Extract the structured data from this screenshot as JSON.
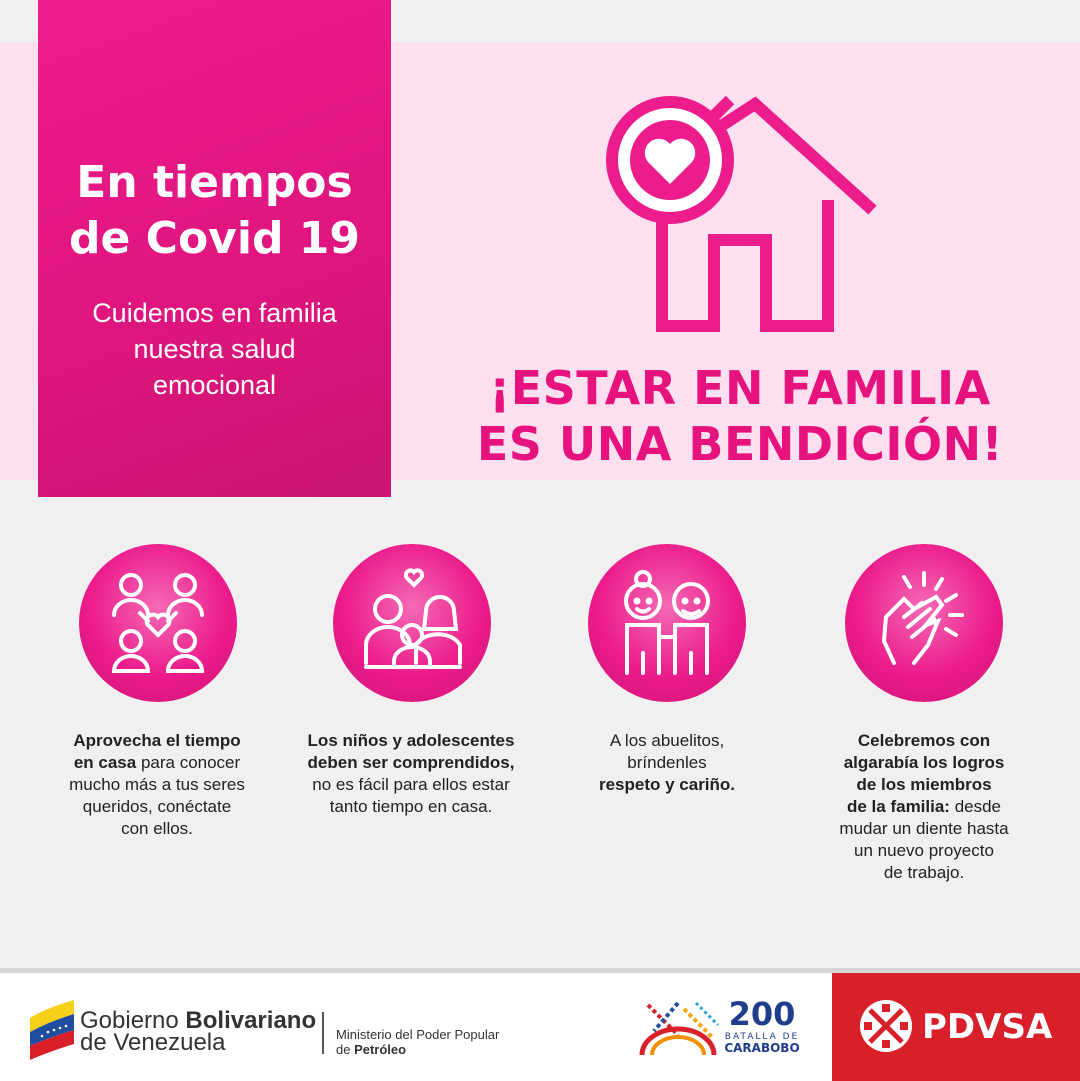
{
  "title_box": {
    "title_line1": "En tiempos",
    "title_line2": "de Covid 19",
    "sub_line1": "Cuidemos en familia",
    "sub_line2": "nuestra salud",
    "sub_line3": "emocional"
  },
  "headline": {
    "line1": "¡ESTAR EN FAMILIA",
    "line2": "ES UNA BENDICIÓN!"
  },
  "tips": [
    {
      "icon": "family-heart-icon",
      "bold1": "Aprovecha el tiempo",
      "bold2": "en casa",
      "text2": " para conocer",
      "text3": "mucho más a tus seres",
      "text4": "queridos, conéctate",
      "text5": "con ellos."
    },
    {
      "icon": "parents-child-icon",
      "bold1": "Los niños y adolescentes",
      "bold2": "deben ser comprendidos,",
      "text3": "no es fácil para ellos estar",
      "text4": "tanto tiempo en casa."
    },
    {
      "icon": "grandparents-icon",
      "text1": "A los abuelitos,",
      "text2": "bríndenles",
      "bold3": "respeto y cariño."
    },
    {
      "icon": "clapping-hands-icon",
      "bold1": "Celebremos con",
      "bold2": "algarabía los logros",
      "bold3": "de los miembros",
      "bold4": "de la familia:",
      "text4": " desde",
      "text5": "mudar un diente hasta",
      "text6": "un nuevo proyecto",
      "text7": "de trabajo."
    }
  ],
  "footer": {
    "gob_line1_a": "Gobierno ",
    "gob_line1_b": "Bolivariano",
    "gob_line2": "de Venezuela",
    "ministerio_line1": "Ministerio del Poder Popular",
    "ministerio_line2_a": "de ",
    "ministerio_line2_b": "Petróleo",
    "bicentenario_number": "200",
    "bicentenario_line1": "BATALLA DE",
    "bicentenario_line2": "CARABOBO",
    "pdvsa": "PDVSA"
  },
  "colors": {
    "magenta": "#ec1c8c",
    "light_pink": "#fde0ef",
    "pdvsa_red": "#d81f2a"
  }
}
